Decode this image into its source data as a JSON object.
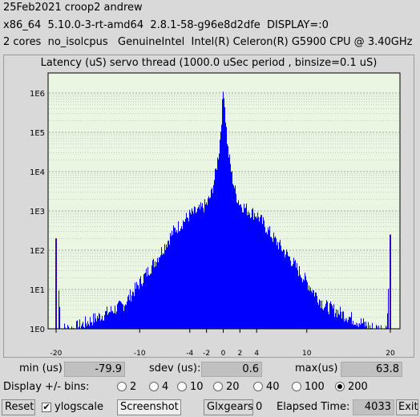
{
  "info": {
    "line1": "25Feb2021 croop2 andrew",
    "line2": "x86_64  5.10.0-3-rt-amd64  2.8.1-58-g96e8d2dfe  DISPLAY=:0",
    "line3": "2 cores  no_isolcpus   GenuineIntel  Intel(R) Celeron(R) G5900 CPU @ 3.40GHz"
  },
  "chart_data": {
    "type": "bar",
    "title": "Latency (uS) servo thread (1000.0 uSec period , binsize=0.1 uS)",
    "xlabel": "",
    "ylabel": "",
    "y_scale": "log",
    "ylim_exp": [
      0,
      6
    ],
    "x_range": [
      -20,
      20
    ],
    "x_ticks": [
      "-20",
      "-10",
      "-4",
      "-2",
      "0",
      "2",
      "4",
      "10",
      "20"
    ],
    "x_tick_values": [
      -20,
      -10,
      -4,
      -2,
      0,
      2,
      4,
      10,
      20
    ],
    "y_ticks": [
      "1E0",
      "1E1",
      "1E2",
      "1E3",
      "1E4",
      "1E5",
      "1E6"
    ],
    "grid": true,
    "bar_color": "#0000ff",
    "edge_marker_color": "#cc0000",
    "profile_x": [
      -20,
      -19.5,
      -18,
      -15,
      -12,
      -10,
      -8,
      -6,
      -4,
      -3,
      -2,
      -1.5,
      -1,
      -0.5,
      -0.2,
      0,
      0.2,
      0.5,
      1,
      1.5,
      2,
      3,
      4,
      6,
      8,
      10,
      12,
      15,
      18,
      19.5,
      20
    ],
    "profile_y": [
      200,
      1,
      1,
      2,
      4,
      15,
      60,
      300,
      800,
      1000,
      1500,
      2500,
      8000,
      40000,
      300000,
      1600000,
      300000,
      40000,
      8000,
      2500,
      1500,
      1000,
      800,
      200,
      60,
      15,
      4,
      2,
      1,
      1,
      250
    ]
  },
  "stats": {
    "min_label": "min (us)",
    "min_value": "-79.9",
    "sdev_label": "sdev (us):",
    "sdev_value": "0.6",
    "max_label": "max(us)",
    "max_value": "63.8"
  },
  "bins": {
    "label": "Display +/- bins:",
    "options": [
      "2",
      "4",
      "10",
      "20",
      "40",
      "100",
      "200"
    ],
    "selected": "200"
  },
  "footer": {
    "reset": "Reset",
    "ylogscale": "ylogscale",
    "ylogscale_checked": true,
    "screenshot": "Screenshot",
    "glxgears": "Glxgears",
    "glxgears_count": "0",
    "elapsed_label": "Elapsed Time:",
    "elapsed_value": "4033",
    "exit": "Exit"
  }
}
